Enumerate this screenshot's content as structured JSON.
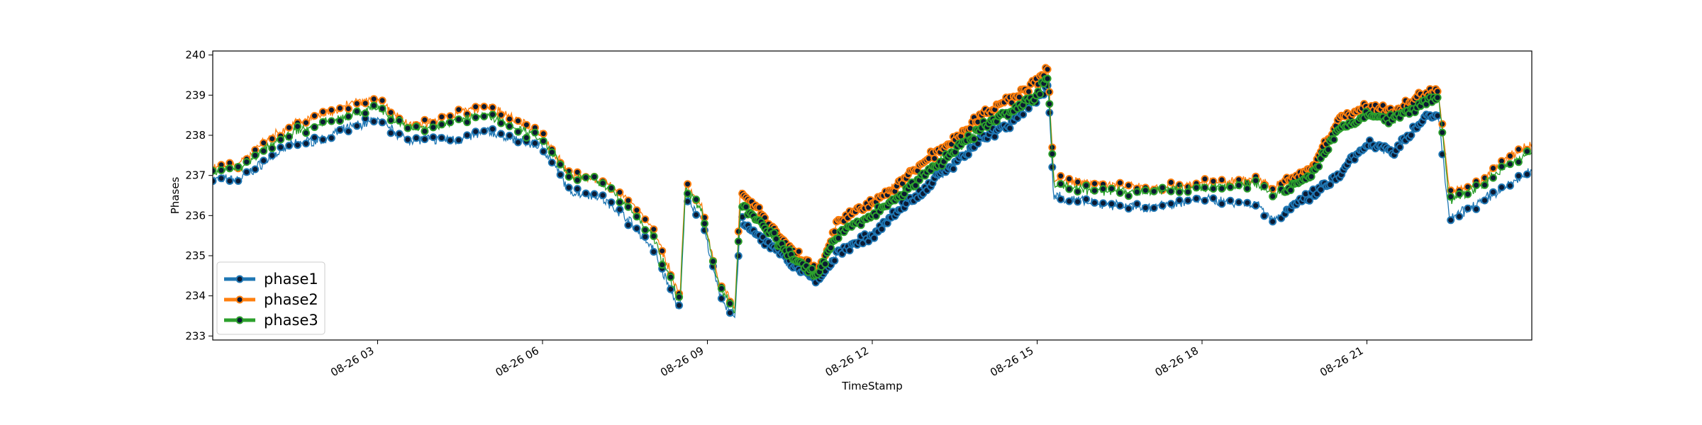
{
  "chart_data": {
    "type": "line",
    "xlabel": "TimeStamp",
    "ylabel": "Phases",
    "x_ticks": [
      "08-26 03",
      "08-26 06",
      "08-26 09",
      "08-26 12",
      "08-26 15",
      "08-26 18",
      "08-26 21"
    ],
    "x_tick_hours": [
      3,
      6,
      9,
      12,
      15,
      18,
      21
    ],
    "xlim_hours": [
      0,
      24
    ],
    "ylim": [
      232.9,
      240.1
    ],
    "y_ticks": [
      233,
      234,
      235,
      236,
      237,
      238,
      239,
      240
    ],
    "grid": false,
    "legend": "lower-left",
    "series": [
      {
        "name": "phase1",
        "color": "#1f77b4",
        "x_hours": [
          0,
          0.5,
          1,
          1.5,
          2,
          2.5,
          3,
          3.5,
          4,
          4.5,
          5,
          5.5,
          6,
          6.5,
          7,
          7.5,
          8,
          8.5,
          8.6,
          8.9,
          9.2,
          9.5,
          9.6,
          10,
          10.5,
          11,
          11.4,
          12,
          12.5,
          13,
          13.5,
          14,
          14.5,
          15,
          15.2,
          15.3,
          16,
          17,
          18,
          19,
          19.3,
          20,
          20.5,
          21,
          21.5,
          22,
          22.3,
          22.5,
          23,
          23.5,
          24
        ],
        "values": [
          236.9,
          236.9,
          237.4,
          237.8,
          237.9,
          238.2,
          238.4,
          237.9,
          237.9,
          237.9,
          238.1,
          237.9,
          237.7,
          236.6,
          236.5,
          236.0,
          235.2,
          233.6,
          236.5,
          235.9,
          234.1,
          233.4,
          235.9,
          235.4,
          234.8,
          234.4,
          235.1,
          235.5,
          236.2,
          236.7,
          237.3,
          237.9,
          238.3,
          238.9,
          239.2,
          236.5,
          236.3,
          236.2,
          236.4,
          236.3,
          235.9,
          236.5,
          237.0,
          237.8,
          237.6,
          238.4,
          238.5,
          235.9,
          236.3,
          236.7,
          237.1
        ]
      },
      {
        "name": "phase2",
        "color": "#ff7f0e",
        "x_hours": [
          0,
          0.5,
          1,
          1.5,
          2,
          2.5,
          3,
          3.5,
          4,
          4.5,
          5,
          5.5,
          6,
          6.5,
          7,
          7.5,
          8,
          8.5,
          8.6,
          8.9,
          9.2,
          9.5,
          9.6,
          10,
          10.5,
          11,
          11.4,
          12,
          12.5,
          13,
          13.5,
          14,
          14.5,
          15,
          15.2,
          15.3,
          16,
          17,
          18,
          19,
          19.3,
          20,
          20.5,
          21,
          21.5,
          22,
          22.3,
          22.5,
          23,
          23.5,
          24
        ],
        "values": [
          237.2,
          237.3,
          237.9,
          238.3,
          238.5,
          238.8,
          238.9,
          238.3,
          238.3,
          238.6,
          238.7,
          238.4,
          238.0,
          237.0,
          236.9,
          236.5,
          235.7,
          234.0,
          236.8,
          236.2,
          234.4,
          233.7,
          236.6,
          236.0,
          235.2,
          234.6,
          235.9,
          236.3,
          236.8,
          237.4,
          237.9,
          238.5,
          238.9,
          239.3,
          239.7,
          236.9,
          236.8,
          236.7,
          236.8,
          236.9,
          236.7,
          237.2,
          238.4,
          238.7,
          238.6,
          239.0,
          239.1,
          236.6,
          236.8,
          237.4,
          237.8
        ]
      },
      {
        "name": "phase3",
        "color": "#2ca02c",
        "x_hours": [
          0,
          0.5,
          1,
          1.5,
          2,
          2.5,
          3,
          3.5,
          4,
          4.5,
          5,
          5.5,
          6,
          6.5,
          7,
          7.5,
          8,
          8.5,
          8.6,
          8.9,
          9.2,
          9.5,
          9.6,
          10,
          10.5,
          11,
          11.4,
          12,
          12.5,
          13,
          13.5,
          14,
          14.5,
          15,
          15.2,
          15.3,
          16,
          17,
          18,
          19,
          19.3,
          20,
          20.5,
          21,
          21.5,
          22,
          22.3,
          22.5,
          23,
          23.5,
          24
        ],
        "values": [
          237.1,
          237.2,
          237.7,
          238.1,
          238.3,
          238.5,
          238.7,
          238.2,
          238.2,
          238.4,
          238.5,
          238.2,
          237.9,
          237.0,
          236.9,
          236.3,
          235.5,
          233.8,
          236.7,
          236.1,
          234.3,
          233.6,
          236.3,
          235.8,
          235.0,
          234.5,
          235.6,
          236.0,
          236.5,
          237.1,
          237.6,
          238.2,
          238.6,
          239.0,
          239.5,
          236.8,
          236.6,
          236.6,
          236.7,
          236.8,
          236.5,
          237.0,
          238.2,
          238.5,
          238.4,
          238.8,
          239.0,
          236.4,
          236.7,
          237.2,
          237.6
        ]
      }
    ],
    "marker_ranges_hours": [
      [
        0,
        15.2
      ],
      [
        15.3,
        24
      ]
    ]
  }
}
